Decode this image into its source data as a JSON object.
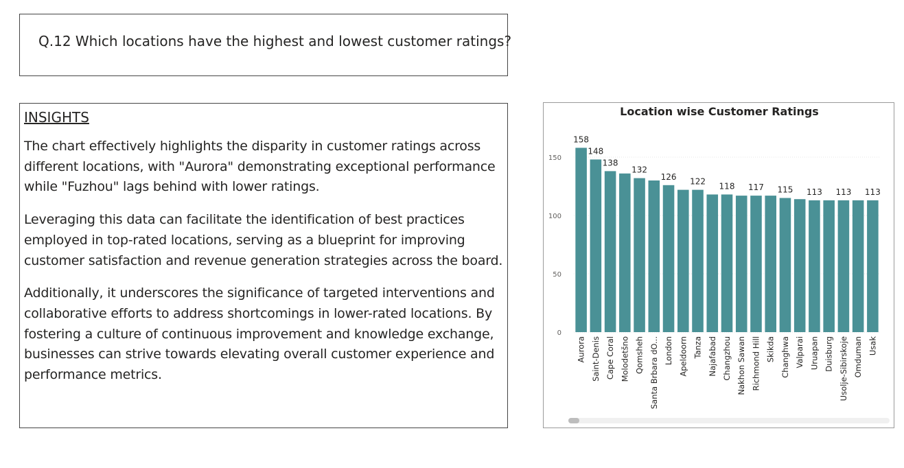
{
  "question": {
    "text": "Q.12 Which locations have the highest and lowest customer ratings?"
  },
  "insights": {
    "heading": "INSIGHTS",
    "paragraphs": [
      "The chart effectively highlights the disparity in customer ratings across different locations, with \"Aurora\" demonstrating exceptional performance while \"Fuzhou\" lags behind with lower ratings.",
      "Leveraging this data can facilitate the identification of best practices employed in top-rated locations, serving as a blueprint for improving customer satisfaction and revenue generation strategies across the board.",
      "Additionally, it underscores the significance of targeted interventions and collaborative efforts to address shortcomings in lower-rated locations. By fostering a culture of continuous improvement and knowledge exchange, businesses can strive towards elevating overall customer experience and performance metrics."
    ]
  },
  "chart_data": {
    "type": "bar",
    "title": "Location wise Customer Ratings",
    "xlabel": "",
    "ylabel": "",
    "categories": [
      "Aurora",
      "Saint-Denis",
      "Cape Coral",
      "Molodetšno",
      "Qomsheh",
      "Santa Brbara dO...",
      "London",
      "Apeldoorn",
      "Tanza",
      "Najafabad",
      "Changzhou",
      "Nakhon Sawan",
      "Richmond Hill",
      "Skikda",
      "Changhwa",
      "Valparai",
      "Uruapan",
      "Duisburg",
      "Usolje-Sibirskoje",
      "Omduman",
      "Usak"
    ],
    "values": [
      158,
      148,
      138,
      136,
      132,
      130,
      126,
      122,
      122,
      118,
      118,
      117,
      117,
      117,
      115,
      114,
      113,
      113,
      113,
      113,
      113
    ],
    "data_labels": {
      "0": "158",
      "1": "148",
      "2": "138",
      "4": "132",
      "6": "126",
      "8": "122",
      "10": "118",
      "12": "117",
      "14": "115",
      "16": "113",
      "18": "113",
      "20": "113"
    },
    "yticks": [
      0,
      50,
      100,
      150
    ],
    "ylim": [
      0,
      170
    ],
    "bar_color": "#4a9196",
    "grid": true,
    "legend": "none"
  }
}
